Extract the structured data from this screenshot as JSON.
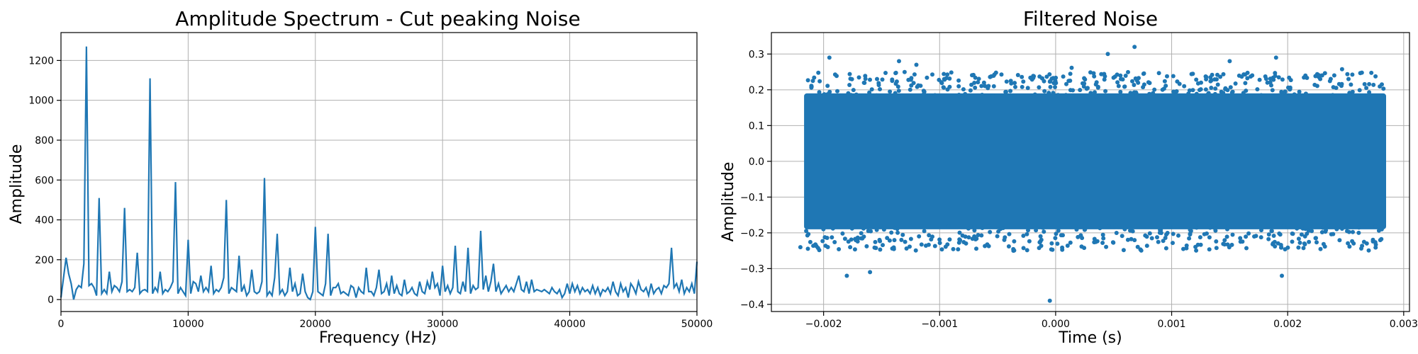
{
  "chart_data": [
    {
      "type": "line",
      "title": "Amplitude Spectrum - Cut peaking Noise",
      "xlabel": "Frequency (Hz)",
      "ylabel": "Amplitude",
      "xlim": [
        0,
        50000
      ],
      "ylim": [
        -60,
        1340
      ],
      "grid": true,
      "series_color": "#1f77b4",
      "x_ticks": [
        {
          "value": 0,
          "label": "0"
        },
        {
          "value": 10000,
          "label": "10000"
        },
        {
          "value": 20000,
          "label": "20000"
        },
        {
          "value": 30000,
          "label": "30000"
        },
        {
          "value": 40000,
          "label": "40000"
        },
        {
          "value": 50000,
          "label": "50000"
        }
      ],
      "y_ticks": [
        {
          "value": 0,
          "label": "0"
        },
        {
          "value": 200,
          "label": "200"
        },
        {
          "value": 400,
          "label": "400"
        },
        {
          "value": 600,
          "label": "600"
        },
        {
          "value": 800,
          "label": "800"
        },
        {
          "value": 1000,
          "label": "1000"
        },
        {
          "value": 1200,
          "label": "1200"
        }
      ],
      "x": [
        0,
        200,
        400,
        600,
        800,
        1000,
        1200,
        1400,
        1600,
        1800,
        2000,
        2200,
        2400,
        2600,
        2800,
        3000,
        3200,
        3400,
        3600,
        3800,
        4000,
        4200,
        4400,
        4600,
        4800,
        5000,
        5200,
        5400,
        5600,
        5800,
        6000,
        6200,
        6400,
        6600,
        6800,
        7000,
        7200,
        7400,
        7600,
        7800,
        8000,
        8200,
        8400,
        8600,
        8800,
        9000,
        9200,
        9400,
        9600,
        9800,
        10000,
        10200,
        10400,
        10600,
        10800,
        11000,
        11200,
        11400,
        11600,
        11800,
        12000,
        12200,
        12400,
        12600,
        12800,
        13000,
        13200,
        13400,
        13600,
        13800,
        14000,
        14200,
        14400,
        14600,
        14800,
        15000,
        15200,
        15400,
        15600,
        15800,
        16000,
        16200,
        16400,
        16600,
        16800,
        17000,
        17200,
        17400,
        17600,
        17800,
        18000,
        18200,
        18400,
        18600,
        18800,
        19000,
        19200,
        19400,
        19600,
        19800,
        20000,
        20200,
        20400,
        20600,
        20800,
        21000,
        21200,
        21400,
        21600,
        21800,
        22000,
        22200,
        22400,
        22600,
        22800,
        23000,
        23200,
        23400,
        23600,
        23800,
        24000,
        24200,
        24400,
        24600,
        24800,
        25000,
        25200,
        25400,
        25600,
        25800,
        26000,
        26200,
        26400,
        26600,
        26800,
        27000,
        27200,
        27400,
        27600,
        27800,
        28000,
        28200,
        28400,
        28600,
        28800,
        29000,
        29200,
        29400,
        29600,
        29800,
        30000,
        30200,
        30400,
        30600,
        30800,
        31000,
        31200,
        31400,
        31600,
        31800,
        32000,
        32200,
        32400,
        32600,
        32800,
        33000,
        33200,
        33400,
        33600,
        33800,
        34000,
        34200,
        34400,
        34600,
        34800,
        35000,
        35200,
        35400,
        35600,
        35800,
        36000,
        36200,
        36400,
        36600,
        36800,
        37000,
        37200,
        37400,
        37600,
        37800,
        38000,
        38200,
        38400,
        38600,
        38800,
        39000,
        39200,
        39400,
        39600,
        39800,
        40000,
        40200,
        40400,
        40600,
        40800,
        41000,
        41200,
        41400,
        41600,
        41800,
        42000,
        42200,
        42400,
        42600,
        42800,
        43000,
        43200,
        43400,
        43600,
        43800,
        44000,
        44200,
        44400,
        44600,
        44800,
        45000,
        45200,
        45400,
        45600,
        45800,
        46000,
        46200,
        46400,
        46600,
        46800,
        47000,
        47200,
        47400,
        47600,
        47800,
        48000,
        48200,
        48400,
        48600,
        48800,
        49000,
        49200,
        49400,
        49600,
        49800,
        50000
      ],
      "y": [
        10,
        110,
        210,
        130,
        80,
        0,
        50,
        70,
        60,
        180,
        1270,
        70,
        80,
        60,
        20,
        510,
        30,
        50,
        30,
        140,
        40,
        70,
        60,
        40,
        90,
        460,
        40,
        50,
        40,
        60,
        235,
        30,
        45,
        50,
        40,
        1110,
        30,
        60,
        40,
        140,
        30,
        50,
        40,
        60,
        90,
        590,
        30,
        60,
        40,
        20,
        300,
        30,
        90,
        80,
        40,
        120,
        40,
        60,
        40,
        170,
        30,
        50,
        40,
        60,
        110,
        500,
        30,
        60,
        50,
        40,
        220,
        40,
        70,
        20,
        40,
        150,
        40,
        30,
        40,
        90,
        610,
        20,
        40,
        20,
        110,
        330,
        30,
        50,
        20,
        40,
        160,
        40,
        80,
        20,
        30,
        130,
        40,
        10,
        0,
        40,
        365,
        40,
        30,
        20,
        80,
        330,
        20,
        60,
        60,
        80,
        30,
        40,
        30,
        20,
        70,
        60,
        10,
        60,
        40,
        30,
        160,
        40,
        40,
        20,
        60,
        150,
        30,
        40,
        80,
        20,
        120,
        30,
        70,
        30,
        20,
        100,
        30,
        40,
        60,
        30,
        20,
        90,
        40,
        30,
        90,
        50,
        140,
        60,
        80,
        20,
        170,
        40,
        70,
        30,
        60,
        270,
        40,
        30,
        90,
        40,
        260,
        30,
        70,
        50,
        60,
        345,
        50,
        120,
        40,
        90,
        180,
        40,
        80,
        30,
        50,
        70,
        40,
        60,
        40,
        80,
        120,
        50,
        40,
        90,
        30,
        100,
        40,
        50,
        45,
        40,
        50,
        40,
        30,
        60,
        40,
        30,
        50,
        10,
        30,
        80,
        30,
        80,
        40,
        70,
        30,
        60,
        40,
        50,
        30,
        70,
        30,
        60,
        20,
        50,
        40,
        60,
        30,
        90,
        40,
        20,
        80,
        40,
        60,
        10,
        80,
        60,
        30,
        90,
        50,
        40,
        60,
        20,
        80,
        30,
        50,
        60,
        30,
        70,
        60,
        80,
        260,
        60,
        80,
        40,
        100,
        30,
        60,
        40,
        80,
        30,
        190
      ]
    },
    {
      "type": "scatter",
      "title": "Filtered Noise",
      "xlabel": "Time (s)",
      "ylabel": "Amplitude",
      "xlim": [
        -0.00245,
        0.00305
      ],
      "ylim": [
        -0.42,
        0.36
      ],
      "grid": true,
      "series_color": "#1f77b4",
      "x_ticks": [
        {
          "value": -0.002,
          "label": "−0.002"
        },
        {
          "value": -0.001,
          "label": "−0.001"
        },
        {
          "value": 0.0,
          "label": "0.000"
        },
        {
          "value": 0.001,
          "label": "0.001"
        },
        {
          "value": 0.002,
          "label": "0.002"
        },
        {
          "value": 0.003,
          "label": "0.003"
        }
      ],
      "y_ticks": [
        {
          "value": -0.4,
          "label": "−0.4"
        },
        {
          "value": -0.3,
          "label": "−0.3"
        },
        {
          "value": -0.2,
          "label": "−0.2"
        },
        {
          "value": -0.1,
          "label": "−0.1"
        },
        {
          "value": 0.0,
          "label": "0.0"
        },
        {
          "value": 0.1,
          "label": "0.1"
        },
        {
          "value": 0.2,
          "label": "0.2"
        },
        {
          "value": 0.3,
          "label": "0.3"
        }
      ],
      "x_range": [
        -0.00215,
        0.00283
      ],
      "dense_band": [
        -0.19,
        0.19
      ],
      "outliers": [
        {
          "x": -0.00195,
          "y": 0.29
        },
        {
          "x": -0.0018,
          "y": -0.32
        },
        {
          "x": -0.0016,
          "y": -0.31
        },
        {
          "x": -0.00135,
          "y": 0.28
        },
        {
          "x": -0.0012,
          "y": 0.27
        },
        {
          "x": 0.00045,
          "y": 0.3
        },
        {
          "x": 0.00068,
          "y": 0.32
        },
        {
          "x": -5e-05,
          "y": -0.39
        },
        {
          "x": 0.00195,
          "y": -0.32
        },
        {
          "x": 0.0019,
          "y": 0.29
        },
        {
          "x": 0.0015,
          "y": 0.28
        },
        {
          "x": -0.0022,
          "y": -0.24
        }
      ]
    }
  ]
}
